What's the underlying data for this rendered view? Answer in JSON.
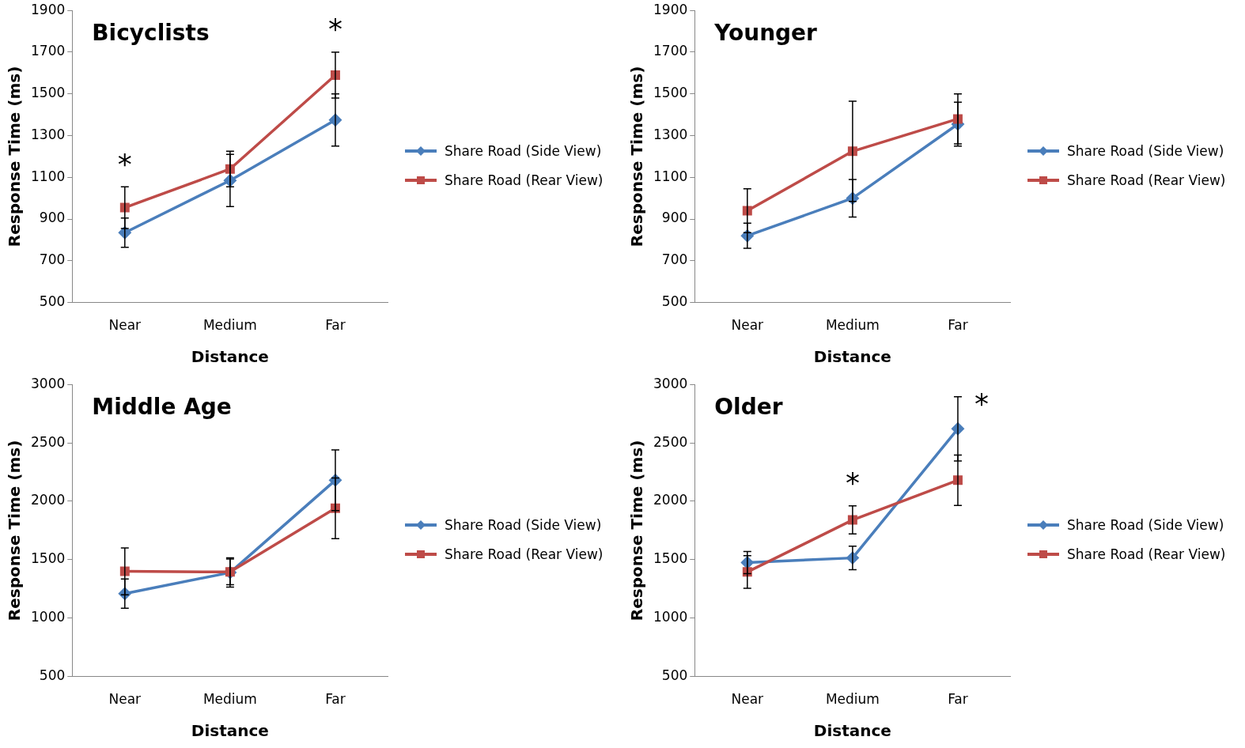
{
  "chart_data": [
    {
      "type": "line",
      "title": "Bicyclists",
      "xlabel": "Distance",
      "ylabel": "Response Time (ms)",
      "categories": [
        "Near",
        "Medium",
        "Far"
      ],
      "ylim": [
        500,
        1900
      ],
      "yticks": [
        500,
        700,
        900,
        1100,
        1300,
        1500,
        1700,
        1900
      ],
      "grid": false,
      "legend": "right",
      "series": [
        {
          "name": "Share Road (Side View)",
          "color": "#4a7ebb",
          "marker": "diamond",
          "values": [
            835,
            1085,
            1375
          ],
          "errors": [
            70,
            125,
            125
          ]
        },
        {
          "name": "Share Road (Rear View)",
          "color": "#be4b48",
          "marker": "square",
          "values": [
            955,
            1140,
            1590
          ],
          "errors": [
            100,
            85,
            110
          ]
        }
      ],
      "annotations": [
        {
          "text": "*",
          "x": "Near",
          "y": 955
        },
        {
          "text": "*",
          "x": "Far",
          "y": 1590
        }
      ]
    },
    {
      "type": "line",
      "title": "Younger",
      "xlabel": "Distance",
      "ylabel": "Response Time (ms)",
      "categories": [
        "Near",
        "Medium",
        "Far"
      ],
      "ylim": [
        500,
        1900
      ],
      "yticks": [
        500,
        700,
        900,
        1100,
        1300,
        1500,
        1700,
        1900
      ],
      "grid": false,
      "legend": "right",
      "series": [
        {
          "name": "Share Road (Side View)",
          "color": "#4a7ebb",
          "marker": "diamond",
          "values": [
            820,
            1000,
            1355
          ],
          "errors": [
            60,
            90,
            105
          ]
        },
        {
          "name": "Share Road (Rear View)",
          "color": "#be4b48",
          "marker": "square",
          "values": [
            940,
            1225,
            1380
          ],
          "errors": [
            105,
            240,
            120
          ]
        }
      ]
    },
    {
      "type": "line",
      "title": "Middle Age",
      "xlabel": "Distance",
      "ylabel": "Response Time (ms)",
      "categories": [
        "Near",
        "Medium",
        "Far"
      ],
      "ylim": [
        500,
        3000
      ],
      "yticks": [
        500,
        1000,
        1500,
        2000,
        2500,
        3000
      ],
      "grid": false,
      "legend": "right",
      "series": [
        {
          "name": "Share Road (Side View)",
          "color": "#4a7ebb",
          "marker": "diamond",
          "values": [
            1210,
            1390,
            2180
          ],
          "errors": [
            125,
            125,
            260
          ]
        },
        {
          "name": "Share Road (Rear View)",
          "color": "#be4b48",
          "marker": "square",
          "values": [
            1400,
            1395,
            1940
          ],
          "errors": [
            200,
            110,
            260
          ]
        }
      ]
    },
    {
      "type": "line",
      "title": "Older",
      "xlabel": "Distance",
      "ylabel": "Response Time (ms)",
      "categories": [
        "Near",
        "Medium",
        "Far"
      ],
      "ylim": [
        500,
        3000
      ],
      "yticks": [
        500,
        1000,
        1500,
        2000,
        2500,
        3000
      ],
      "grid": false,
      "legend": "right",
      "series": [
        {
          "name": "Share Road (Side View)",
          "color": "#4a7ebb",
          "marker": "diamond",
          "values": [
            1475,
            1515,
            2620
          ],
          "errors": [
            95,
            100,
            275
          ]
        },
        {
          "name": "Share Road (Rear View)",
          "color": "#be4b48",
          "marker": "square",
          "values": [
            1395,
            1840,
            2180
          ],
          "errors": [
            140,
            120,
            215
          ]
        }
      ],
      "annotations": [
        {
          "text": "*",
          "x": "Medium",
          "y": 1840
        },
        {
          "text": "*",
          "x": "Far",
          "y": 2620
        }
      ]
    }
  ]
}
